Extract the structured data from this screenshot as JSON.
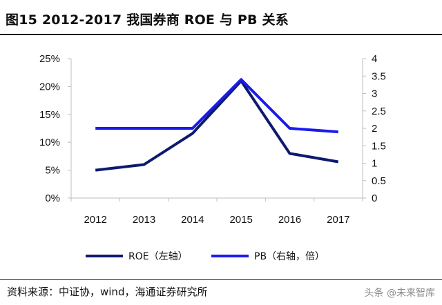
{
  "figure": {
    "title": "图15 2012-2017 我国券商 ROE 与 PB 关系",
    "source": "资料来源：中证协，wind，海通证券研究所",
    "watermark": "头条 @未来智库"
  },
  "chart_data": {
    "type": "line",
    "x": [
      "2012",
      "2013",
      "2014",
      "2015",
      "2016",
      "2017"
    ],
    "series": [
      {
        "name": "ROE（左轴）",
        "axis": "left",
        "color": "#0d1a6e",
        "values": [
          5.0,
          6.0,
          11.6,
          21.0,
          8.0,
          6.5
        ]
      },
      {
        "name": "PB（右轴，倍）",
        "axis": "right",
        "color": "#1a1aee",
        "values": [
          2.0,
          2.0,
          2.0,
          3.4,
          2.0,
          1.9
        ]
      }
    ],
    "y_left": {
      "min": 0,
      "max": 25,
      "ticks": [
        "0%",
        "5%",
        "10%",
        "15%",
        "20%",
        "25%"
      ]
    },
    "y_right": {
      "min": 0,
      "max": 4,
      "ticks": [
        "0",
        "0.5",
        "1",
        "1.5",
        "2",
        "2.5",
        "3",
        "3.5",
        "4"
      ]
    },
    "grid": false,
    "legend": "bottom"
  }
}
